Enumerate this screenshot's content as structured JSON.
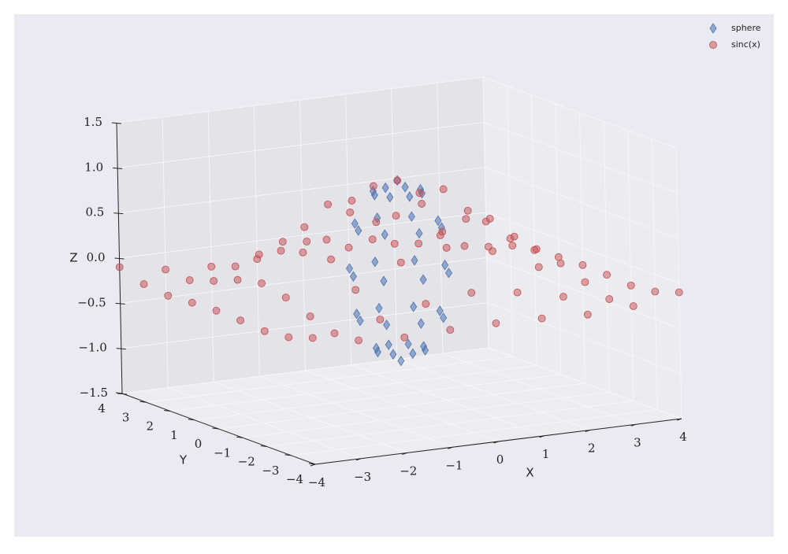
{
  "chart_data": {
    "type": "scatter3d",
    "xlabel": "X",
    "ylabel": "Y",
    "zlabel": "Z",
    "xlim": [
      -4,
      4
    ],
    "ylim": [
      -4,
      4
    ],
    "zlim": [
      -1.5,
      1.5
    ],
    "xticks": [
      {
        "value": -4,
        "label": "−4"
      },
      {
        "value": -3,
        "label": "−3"
      },
      {
        "value": -2,
        "label": "−2"
      },
      {
        "value": -1,
        "label": "−1"
      },
      0,
      1,
      2,
      3,
      4
    ],
    "yticks": [
      {
        "value": -4,
        "label": "−4"
      },
      {
        "value": -3,
        "label": "−3"
      },
      {
        "value": -2,
        "label": "−2"
      },
      {
        "value": -1,
        "label": "−1"
      },
      0,
      1,
      2,
      3,
      4
    ],
    "zticks": [
      {
        "value": -1.5,
        "label": "−1.5"
      },
      {
        "value": -1,
        "label": "−1.0"
      },
      {
        "value": -0.5,
        "label": "−0.5"
      },
      {
        "value": 0,
        "label": "0.0"
      },
      {
        "value": 0.5,
        "label": "0.5"
      },
      {
        "value": 1,
        "label": "1.0"
      },
      1.5
    ],
    "grid": true,
    "legend": "upper right",
    "series": [
      {
        "name": "sphere",
        "marker": "diamond",
        "color": "#4c72b0",
        "x": [
          0,
          0.5,
          0.35,
          0,
          -0.35,
          -0.5,
          -0.35,
          0,
          0.35,
          0.87,
          0.62,
          0,
          -0.62,
          -0.87,
          -0.62,
          0,
          0.62,
          1,
          0.71,
          0,
          -0.71,
          -1,
          -0.71,
          0,
          0.71,
          0.87,
          0.62,
          0,
          -0.62,
          -0.87,
          -0.62,
          0,
          0.62,
          0.5,
          0.35,
          0,
          -0.35,
          -0.5,
          -0.35,
          0,
          0.35,
          0
        ],
        "y": [
          0,
          0,
          0.35,
          0.5,
          0.35,
          0,
          -0.35,
          -0.5,
          -0.35,
          0,
          0.62,
          0.87,
          0.62,
          0,
          -0.62,
          -0.87,
          -0.62,
          0,
          0.71,
          1,
          0.71,
          0,
          -0.71,
          -1,
          -0.71,
          0,
          0.62,
          0.87,
          0.62,
          0,
          -0.62,
          -0.87,
          -0.62,
          0,
          0.35,
          0.5,
          0.35,
          0,
          -0.35,
          -0.5,
          -0.35,
          0
        ],
        "z": [
          1,
          0.87,
          0.87,
          0.87,
          0.87,
          0.87,
          0.87,
          0.87,
          0.87,
          0.5,
          0.5,
          0.5,
          0.5,
          0.5,
          0.5,
          0.5,
          0.5,
          0,
          0,
          0,
          0,
          0,
          0,
          0,
          0,
          -0.5,
          -0.5,
          -0.5,
          -0.5,
          -0.5,
          -0.5,
          -0.5,
          -0.5,
          -0.87,
          -0.87,
          -0.87,
          -0.87,
          -0.87,
          -0.87,
          -0.87,
          -0.87,
          -1
        ]
      },
      {
        "name": "sinc(x)",
        "marker": "circle",
        "color": "#c44e52",
        "x": [
          -4,
          -4,
          -4,
          -4,
          -4,
          -4,
          -4,
          -4,
          -4,
          -3,
          -3,
          -3,
          -3,
          -3,
          -3,
          -3,
          -3,
          -3,
          -2,
          -2,
          -2,
          -2,
          -2,
          -2,
          -2,
          -2,
          -2,
          -1,
          -1,
          -1,
          -1,
          -1,
          -1,
          -1,
          -1,
          -1,
          0,
          0,
          0,
          0,
          0,
          0,
          0,
          0,
          0,
          1,
          1,
          1,
          1,
          1,
          1,
          1,
          1,
          1,
          2,
          2,
          2,
          2,
          2,
          2,
          2,
          2,
          2,
          3,
          3,
          3,
          3,
          3,
          3,
          3,
          3,
          3,
          4,
          4,
          4,
          4,
          4,
          4,
          4,
          4,
          4
        ],
        "y": [
          -4,
          -3,
          -2,
          -1,
          0,
          1,
          2,
          3,
          4,
          -4,
          -3,
          -2,
          -1,
          0,
          1,
          2,
          3,
          4,
          -4,
          -3,
          -2,
          -1,
          0,
          1,
          2,
          3,
          4,
          -4,
          -3,
          -2,
          -1,
          0,
          1,
          2,
          3,
          4,
          -4,
          -3,
          -2,
          -1,
          0,
          1,
          2,
          3,
          4,
          -4,
          -3,
          -2,
          -1,
          0,
          1,
          2,
          3,
          4,
          -4,
          -3,
          -2,
          -1,
          0,
          1,
          2,
          3,
          4,
          -4,
          -3,
          -2,
          -1,
          0,
          1,
          2,
          3,
          4,
          -4,
          -3,
          -2,
          -1,
          0,
          1,
          2,
          3,
          4
        ],
        "z": [
          -0.1,
          -0.19,
          -0.22,
          -0.2,
          -0.19,
          -0.2,
          -0.22,
          -0.19,
          -0.1,
          -0.19,
          -0.21,
          -0.12,
          -0.01,
          0.05,
          -0.01,
          -0.12,
          -0.21,
          -0.19,
          -0.22,
          -0.12,
          0.11,
          0.35,
          0.45,
          0.35,
          0.11,
          -0.12,
          -0.22,
          -0.2,
          -0.01,
          0.35,
          0.7,
          0.84,
          0.7,
          0.35,
          -0.01,
          -0.2,
          -0.19,
          0.05,
          0.45,
          0.84,
          1,
          0.84,
          0.45,
          0.05,
          -0.19,
          -0.2,
          -0.01,
          0.35,
          0.7,
          0.84,
          0.7,
          0.35,
          -0.01,
          -0.2,
          -0.22,
          -0.12,
          0.11,
          0.35,
          0.45,
          0.35,
          0.11,
          -0.12,
          -0.22,
          -0.19,
          -0.21,
          -0.12,
          -0.01,
          0.05,
          -0.01,
          -0.12,
          -0.21,
          -0.19,
          -0.1,
          -0.19,
          -0.22,
          -0.2,
          -0.19,
          -0.2,
          -0.22,
          -0.19,
          -0.1
        ]
      }
    ]
  }
}
